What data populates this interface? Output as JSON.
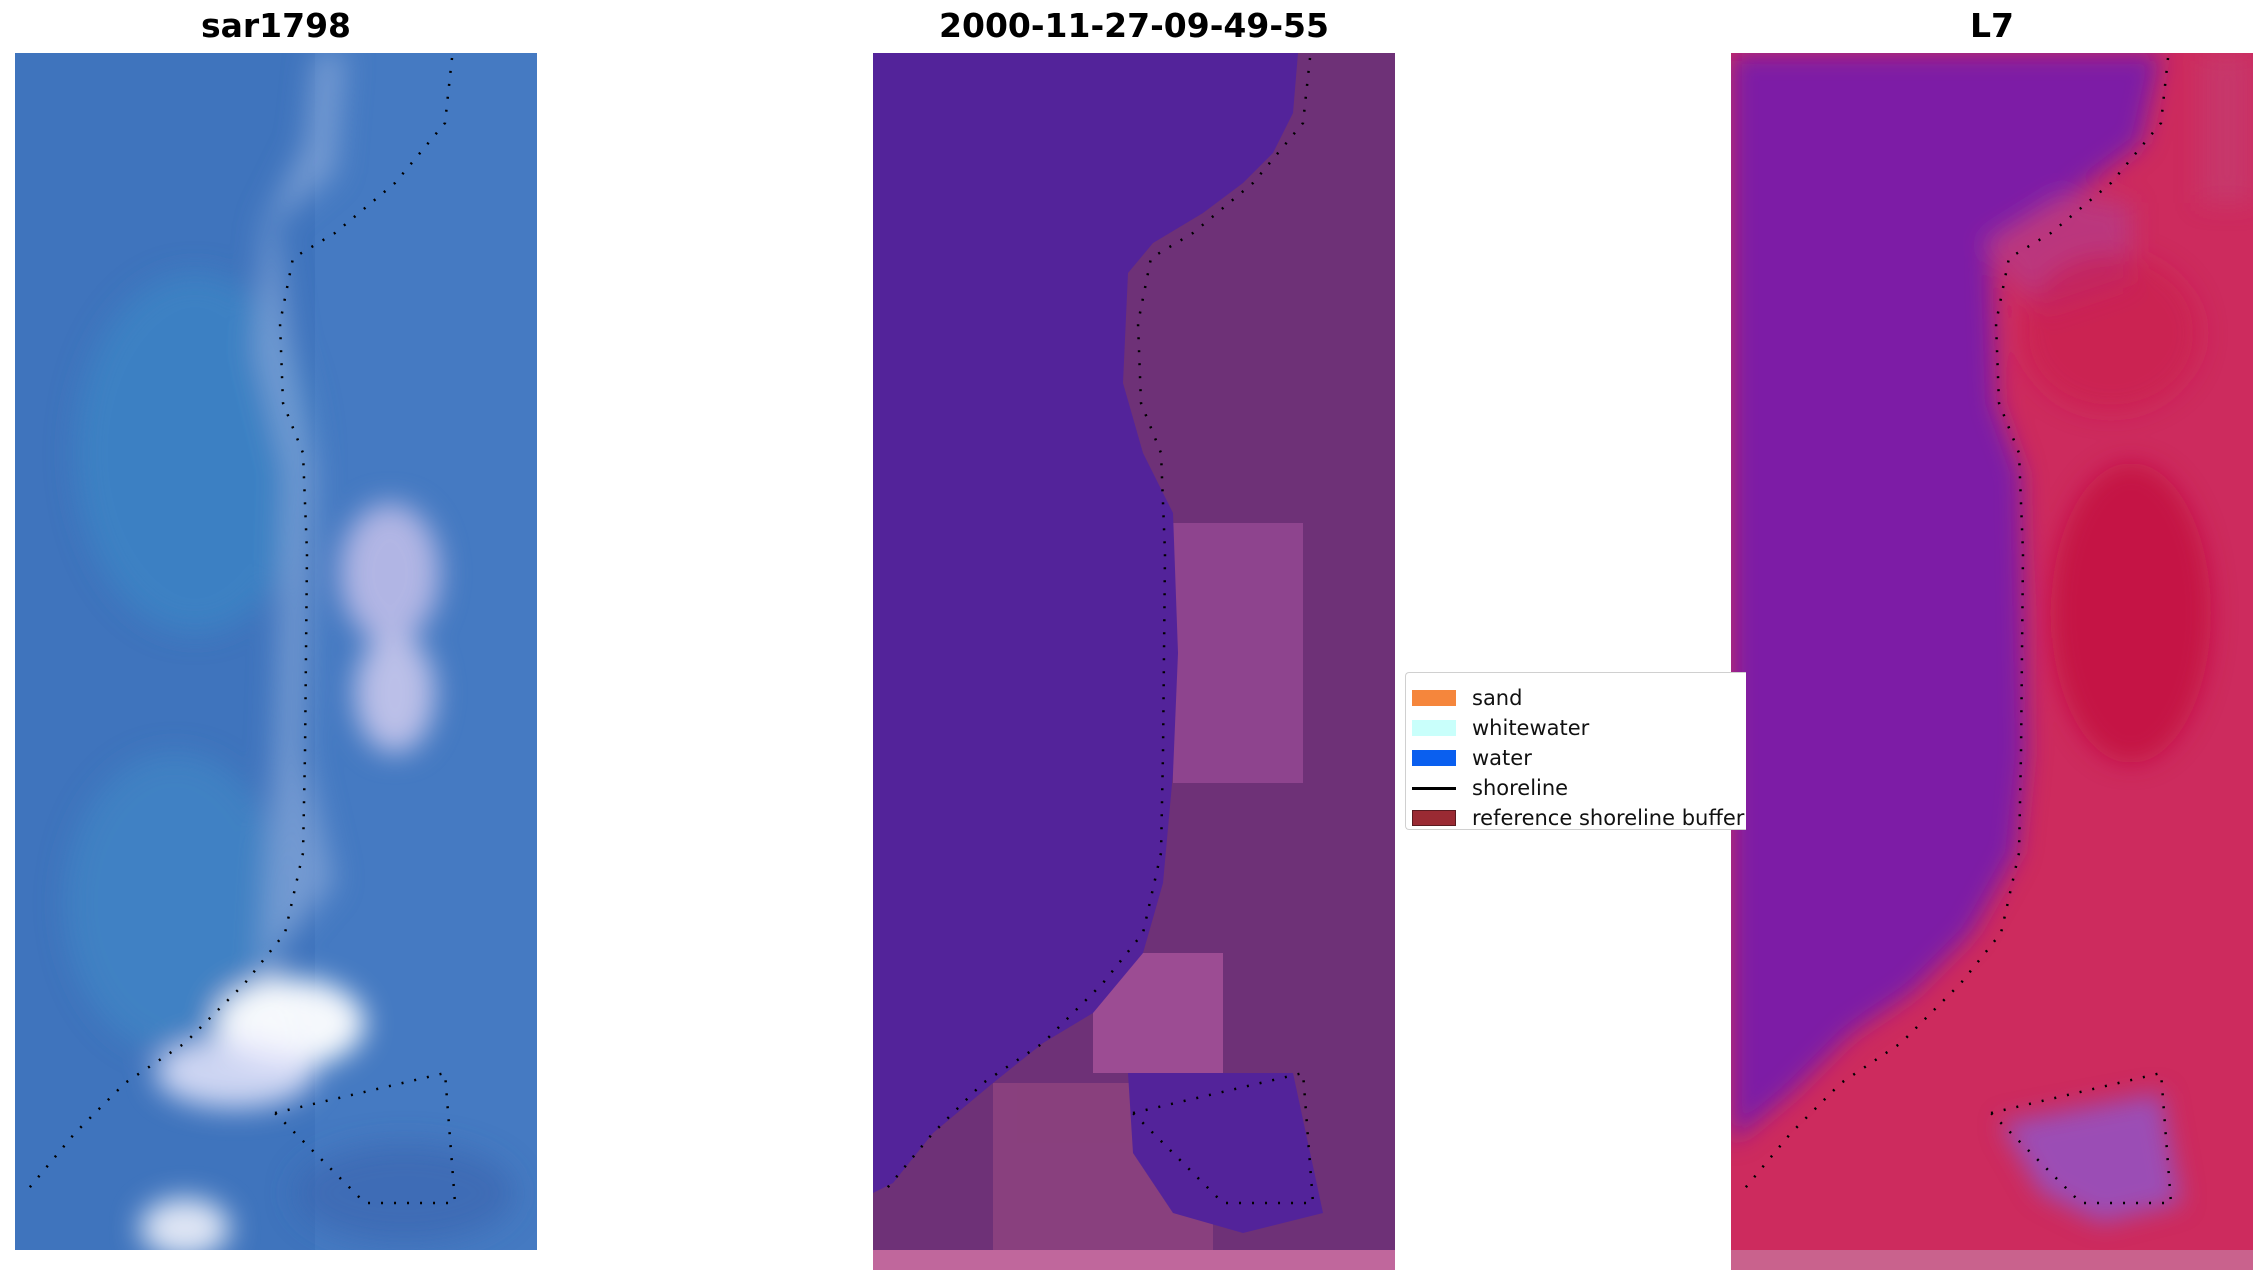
{
  "panels": {
    "rgb": {
      "title": "sar1798"
    },
    "classified": {
      "title": "2000-11-27-09-49-55"
    },
    "index": {
      "title": "L7"
    }
  },
  "legend": {
    "items": [
      {
        "label": "sand",
        "color": "#f5863c",
        "kind": "patch"
      },
      {
        "label": "whitewater",
        "color": "#c9fffb",
        "kind": "patch"
      },
      {
        "label": "water",
        "color": "#0a5fef",
        "kind": "patch"
      },
      {
        "label": "shoreline",
        "color": "#000000",
        "kind": "line"
      },
      {
        "label": "reference shoreline buffer",
        "color": "#9a2a33",
        "kind": "patch"
      }
    ]
  }
}
